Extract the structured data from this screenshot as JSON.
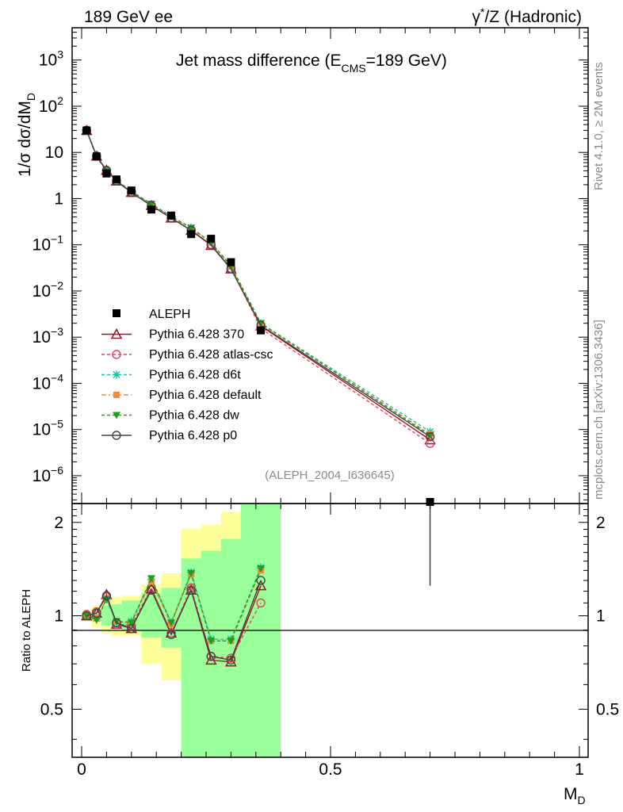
{
  "header": {
    "left": "189 GeV ee",
    "right_prefix": "γ",
    "right_sup": "*",
    "right_rest": "/Z (Hadronic)"
  },
  "side_top": "Rivet 4.1.0, ≥ 2M events",
  "side_bottom": "mcplots.cern.ch [arXiv:1306.3436]",
  "analysis_tag": "(ALEPH_2004_I636645)",
  "chart_data": {
    "type": "line",
    "title_main": "Jet mass difference (E",
    "title_sub": "CMS",
    "title_end": "=189 GeV)",
    "ylabel_main": "1/σ  dσ/dM",
    "ylabel_sub": "D",
    "xlabel_main": "M",
    "xlabel_sub": "D",
    "ratio_ylabel": "Ratio to ALEPH",
    "xlim": [
      0,
      1
    ],
    "ylim_main": [
      2.5e-07,
      5000
    ],
    "ylim_ratio": [
      0.35,
      2.3
    ],
    "x_ticks": [
      0,
      0.5,
      1
    ],
    "x_tick_labels": [
      "0",
      "0.5",
      "1"
    ],
    "y_major": [
      {
        "v": 1e-06,
        "b": "10",
        "e": "−6"
      },
      {
        "v": 1e-05,
        "b": "10",
        "e": "−5"
      },
      {
        "v": 0.0001,
        "b": "10",
        "e": "−4"
      },
      {
        "v": 0.001,
        "b": "10",
        "e": "−3"
      },
      {
        "v": 0.01,
        "b": "10",
        "e": "−2"
      },
      {
        "v": 0.1,
        "b": "10",
        "e": "−1"
      },
      {
        "v": 1,
        "b": "1",
        "e": ""
      },
      {
        "v": 10,
        "b": "10",
        "e": ""
      },
      {
        "v": 100,
        "b": "10",
        "e": "2"
      },
      {
        "v": 1000,
        "b": "10",
        "e": "3"
      }
    ],
    "ratio_ticks": [
      0.5,
      1,
      2
    ],
    "ratio_tick_labels": [
      "0.5",
      "1",
      "2"
    ],
    "x": [
      0.01,
      0.03,
      0.05,
      0.07,
      0.1,
      0.14,
      0.18,
      0.22,
      0.26,
      0.3,
      0.36,
      0.7
    ],
    "bin_edges": [
      0.0,
      0.02,
      0.04,
      0.06,
      0.08,
      0.12,
      0.16,
      0.2,
      0.24,
      0.28,
      0.32,
      0.4,
      1.0
    ],
    "data": {
      "name": "ALEPH",
      "values": [
        30,
        8.2,
        3.5,
        2.6,
        1.5,
        0.58,
        0.43,
        0.17,
        0.135,
        0.042,
        0.0014,
        2.5e-07
      ]
    },
    "series": [
      {
        "name": "Pythia 6.428 370",
        "color": "#a0102a",
        "dash": "",
        "marker": "triangle-open",
        "values": [
          29.8,
          8.3,
          4.1,
          2.4,
          1.36,
          0.71,
          0.38,
          0.205,
          0.097,
          0.03,
          0.00175,
          6e-06
        ]
      },
      {
        "name": "Pythia 6.428 atlas-csc",
        "color": "#e8405e",
        "dash": "4,3",
        "marker": "circle-open",
        "values": [
          30.2,
          8.4,
          4.0,
          2.45,
          1.4,
          0.72,
          0.38,
          0.21,
          0.101,
          0.031,
          0.00155,
          5e-06
        ]
      },
      {
        "name": "Pythia 6.428 d6t",
        "color": "#1fbfa2",
        "dash": "4,3",
        "marker": "star",
        "values": [
          30.0,
          8.1,
          3.95,
          2.5,
          1.44,
          0.76,
          0.41,
          0.235,
          0.113,
          0.035,
          0.002,
          9e-06
        ]
      },
      {
        "name": "Pythia 6.428 default",
        "color": "#f58a3c",
        "dash": "6,3,2,3",
        "marker": "square",
        "values": [
          30.1,
          8.0,
          4.0,
          2.5,
          1.42,
          0.75,
          0.4,
          0.23,
          0.112,
          0.034,
          0.00195,
          8e-06
        ]
      },
      {
        "name": "Pythia 6.428 dw",
        "color": "#1ea01e",
        "dash": "4,3",
        "marker": "triangle-down",
        "values": [
          30.0,
          8.0,
          3.95,
          2.5,
          1.43,
          0.77,
          0.41,
          0.232,
          0.113,
          0.035,
          0.002,
          7.5e-06
        ]
      },
      {
        "name": "Pythia 6.428 p0",
        "color": "#444444",
        "dash": "",
        "marker": "circle-open",
        "values": [
          29.9,
          8.3,
          4.1,
          2.4,
          1.36,
          0.7,
          0.38,
          0.205,
          0.1,
          0.03,
          0.0018,
          7e-06
        ]
      }
    ],
    "ratios": [
      [
        1.0,
        1.02,
        1.17,
        0.94,
        0.91,
        1.22,
        0.88,
        1.21,
        0.72,
        0.71,
        1.25
      ],
      [
        1.01,
        1.03,
        1.15,
        0.94,
        0.93,
        1.23,
        0.88,
        1.23,
        0.74,
        0.73,
        1.1
      ],
      [
        1.0,
        0.98,
        1.13,
        0.95,
        0.96,
        1.31,
        0.95,
        1.38,
        0.84,
        0.84,
        1.43
      ],
      [
        1.0,
        0.98,
        1.14,
        0.96,
        0.95,
        1.29,
        0.94,
        1.36,
        0.83,
        0.83,
        1.4
      ],
      [
        1.0,
        0.97,
        1.13,
        0.96,
        0.95,
        1.32,
        0.95,
        1.37,
        0.83,
        0.83,
        1.42
      ],
      [
        1.0,
        1.02,
        1.16,
        0.95,
        0.91,
        1.21,
        0.87,
        1.21,
        0.74,
        0.72,
        1.3
      ]
    ],
    "band_stat": [
      [
        0.98,
        1.02
      ],
      [
        0.96,
        1.04
      ],
      [
        0.93,
        1.08
      ],
      [
        0.92,
        1.09
      ],
      [
        0.9,
        1.12
      ],
      [
        0.85,
        1.18
      ],
      [
        0.79,
        1.23
      ],
      [
        0.35,
        1.53
      ],
      [
        0.35,
        1.62
      ],
      [
        0.35,
        1.77
      ],
      [
        0.35,
        2.3
      ],
      [
        null,
        null
      ]
    ],
    "band_total": [
      [
        0.96,
        1.04
      ],
      [
        0.92,
        1.08
      ],
      [
        0.88,
        1.14
      ],
      [
        0.86,
        1.15
      ],
      [
        0.86,
        1.16
      ],
      [
        0.7,
        1.26
      ],
      [
        0.62,
        1.37
      ],
      [
        0.35,
        1.91
      ],
      [
        0.56,
        1.97
      ],
      [
        0.35,
        2.16
      ],
      [
        0.35,
        2.3
      ],
      [
        null,
        null
      ]
    ],
    "p0_last_error_up": 2.3
  }
}
